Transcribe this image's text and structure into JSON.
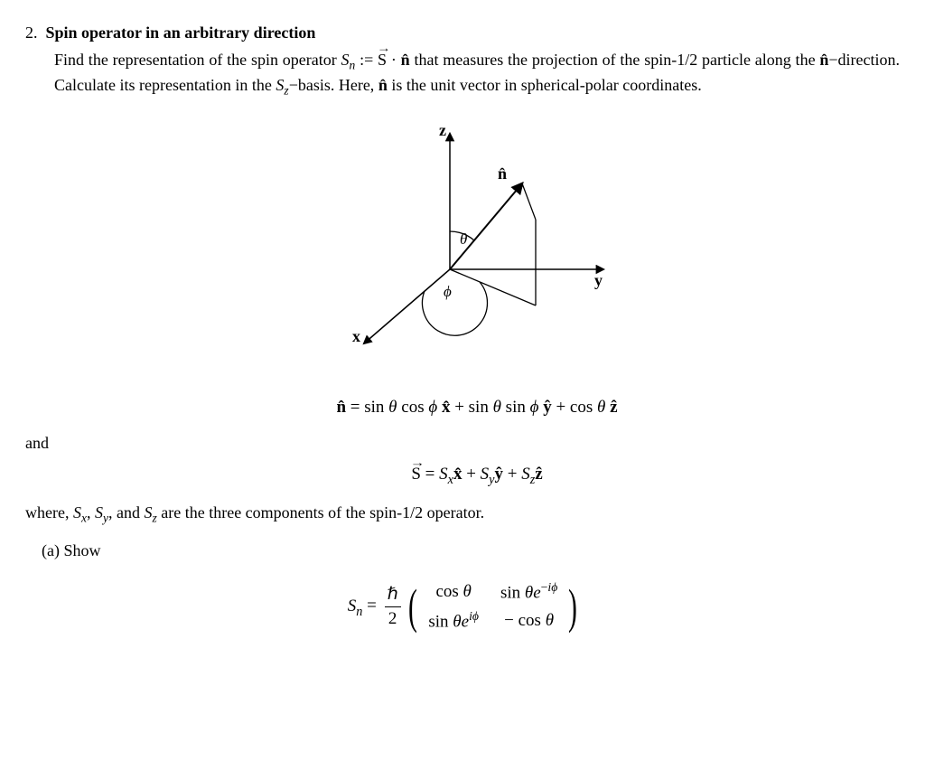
{
  "problem": {
    "number": "2.",
    "title": "Spin operator in an arbitrary direction",
    "prompt_html": "Find the representation of the spin operator <span class='ital'>S<sub>n</sub></span> := <span class='vecarrow'>S</span> · <b>n̂</b> that measures the projection of the spin-1/2 particle along the <b>n̂</b>−direction. Calculate its representation in the <span class='ital'>S<sub>z</sub></span>−basis. Here, <b>n̂</b> is the unit vector in spherical-polar coordinates."
  },
  "diagram": {
    "axes": {
      "z": "z",
      "y": "y",
      "x": "x"
    },
    "nhat": "n̂",
    "theta": "θ",
    "phi": "ϕ",
    "stroke": "#000000",
    "stroke_width": 1.5
  },
  "equations": {
    "nhat_html": "<b>n̂</b> = sin <span class='ital'>θ</span> cos <span class='ital'>ϕ</span> <b>x̂</b> + sin <span class='ital'>θ</span> sin <span class='ital'>ϕ</span> <b>ŷ</b> + cos <span class='ital'>θ</span> <b>ẑ</b>",
    "and": "and",
    "S_html": "<span class='vecarrow'>S</span> = <span class='ital'>S<sub>x</sub></span><b>x̂</b> + <span class='ital'>S<sub>y</sub></span><b>ŷ</b> + <span class='ital'>S<sub>z</sub></span><b>ẑ</b>",
    "where_html": "where, <span class='ital'>S<sub>x</sub></span>, <span class='ital'>S<sub>y</sub></span>, and <span class='ital'>S<sub>z</sub></span> are the three components of the spin-1/2 operator."
  },
  "part_a": {
    "label": "(a) Show",
    "lhs_html": "<span class='ital'>S<sub>n</sub></span> = ",
    "frac": {
      "num": "ℏ",
      "den": "2"
    },
    "matrix": {
      "r1c1": "cos <span class='ital'>θ</span>",
      "r1c2": "sin <span class='ital'>θe</span><sup>−<span class='ital'>iϕ</span></sup>",
      "r2c1": "sin <span class='ital'>θe</span><sup><span class='ital'>iϕ</span></sup>",
      "r2c2": "− cos <span class='ital'>θ</span>"
    }
  }
}
